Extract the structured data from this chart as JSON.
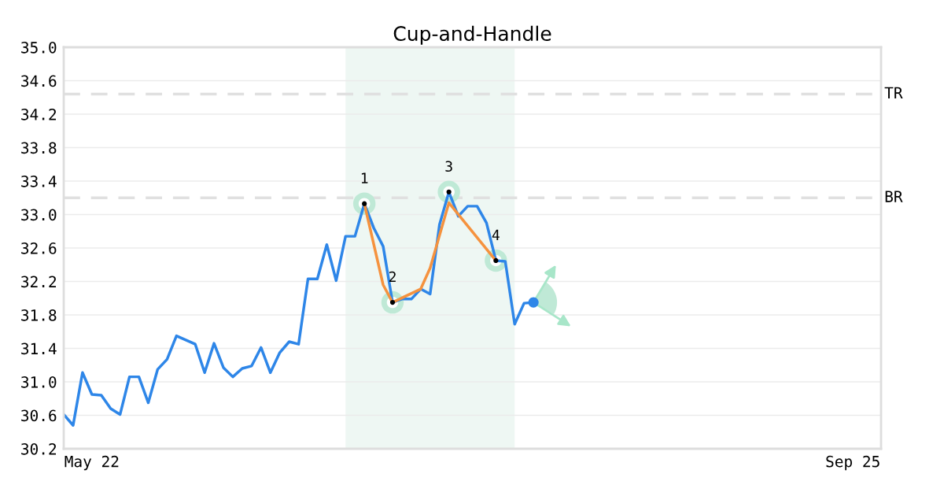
{
  "chart_data": {
    "type": "line",
    "title": "Cup-and-Handle",
    "categories": [
      null,
      null,
      null,
      "May 22",
      null,
      null,
      null,
      null,
      null,
      null,
      null,
      null,
      null,
      null,
      null,
      null,
      null,
      null,
      null,
      null,
      null,
      null,
      null,
      null,
      null,
      null,
      null,
      null,
      null,
      null,
      null,
      null,
      null,
      null,
      null,
      null,
      null,
      null,
      null,
      null,
      null,
      null,
      null,
      null,
      null,
      null,
      null,
      null,
      null,
      null,
      null,
      null,
      null,
      null,
      null,
      null,
      null,
      null,
      null,
      null,
      null,
      null,
      null,
      null,
      null,
      null,
      null,
      null,
      null,
      null,
      null,
      null,
      null,
      null,
      null,
      null,
      null,
      null,
      null,
      null,
      null,
      null,
      null,
      null,
      "Sep 25",
      null,
      null,
      null
    ],
    "ylim": [
      30.2,
      35.0
    ],
    "yticks": [
      {
        "value": 30.2,
        "label": "30.2"
      },
      {
        "value": 30.6,
        "label": "30.6"
      },
      {
        "value": 31.0,
        "label": "31.0"
      },
      {
        "value": 31.4,
        "label": "31.4"
      },
      {
        "value": 31.8,
        "label": "31.8"
      },
      {
        "value": 32.2,
        "label": "32.2"
      },
      {
        "value": 32.6,
        "label": "32.6"
      },
      {
        "value": 33.0,
        "label": "33.0"
      },
      {
        "value": 33.4,
        "label": "33.4"
      },
      {
        "value": 33.8,
        "label": "33.8"
      },
      {
        "value": 34.2,
        "label": "34.2"
      },
      {
        "value": 34.6,
        "label": "34.6"
      },
      {
        "value": 35.0,
        "label": "35.0"
      }
    ],
    "grid": "y",
    "series": [
      {
        "color": "#2e86e8",
        "values": [
          30.61,
          30.48,
          31.11,
          30.85,
          30.84,
          30.68,
          30.61,
          31.06,
          31.06,
          30.75,
          31.15,
          31.27,
          31.55,
          31.5,
          31.45,
          31.11,
          31.46,
          31.17,
          31.06,
          31.16,
          31.19,
          31.41,
          31.11,
          31.35,
          31.48,
          31.45,
          32.23,
          32.23,
          32.64,
          32.21,
          32.74,
          32.74,
          33.13,
          32.84,
          32.62,
          31.95,
          31.99,
          31.99,
          32.11,
          32.05,
          32.88,
          33.27,
          32.98,
          33.1,
          33.1,
          32.9,
          32.45,
          32.44,
          31.69,
          31.94,
          31.95,
          null,
          null,
          null,
          null,
          null,
          null,
          null,
          null,
          null,
          null,
          null,
          null,
          null,
          null,
          null,
          null,
          null,
          null,
          null,
          null,
          null,
          null,
          null,
          null,
          null,
          null,
          null,
          null,
          null,
          null,
          null,
          null,
          null,
          null,
          null,
          null,
          null
        ]
      },
      {
        "color": "#f5923e",
        "values": [
          null,
          null,
          null,
          null,
          null,
          null,
          null,
          null,
          null,
          null,
          null,
          null,
          null,
          null,
          null,
          null,
          null,
          null,
          null,
          null,
          null,
          null,
          null,
          null,
          null,
          null,
          null,
          null,
          null,
          null,
          null,
          null,
          33.13,
          null,
          32.16,
          31.95,
          null,
          null,
          32.11,
          32.36,
          null,
          33.14,
          null,
          null,
          null,
          null,
          32.45,
          null,
          null,
          null,
          null,
          null,
          null,
          null,
          null,
          null,
          null,
          null,
          null,
          null,
          null,
          null,
          null,
          null,
          null,
          null,
          null,
          null,
          null,
          null,
          null,
          null,
          null,
          null,
          null,
          null,
          null,
          null,
          null,
          null,
          null,
          null,
          null,
          null,
          null,
          null,
          null,
          null
        ]
      },
      {
        "type": "scatter",
        "color": "#000000",
        "values": [
          null,
          null,
          null,
          null,
          null,
          null,
          null,
          null,
          null,
          null,
          null,
          null,
          null,
          null,
          null,
          null,
          null,
          null,
          null,
          null,
          null,
          null,
          null,
          null,
          null,
          null,
          null,
          null,
          null,
          null,
          null,
          null,
          33.13,
          null,
          null,
          31.95,
          null,
          null,
          null,
          null,
          null,
          33.27,
          null,
          null,
          null,
          null,
          32.45,
          null,
          null,
          null,
          null,
          null,
          null,
          null,
          null,
          null,
          null,
          null,
          null,
          null,
          null,
          null,
          null,
          null,
          null,
          null,
          null,
          null,
          null,
          null,
          null,
          null,
          null,
          null,
          null,
          null,
          null,
          null,
          null,
          null,
          null,
          null,
          null,
          null,
          null,
          null,
          null,
          null
        ]
      }
    ],
    "annotations": [
      "1",
      "2",
      "3",
      "4"
    ],
    "ref_lines": [
      {
        "axis": "y",
        "value": 34.44,
        "label": "TR",
        "color": "#e0e0e0",
        "line_style": "dashed"
      },
      {
        "axis": "y",
        "value": 33.2,
        "label": "BR",
        "color": "#e0e0e0",
        "line_style": "dashed"
      }
    ]
  }
}
